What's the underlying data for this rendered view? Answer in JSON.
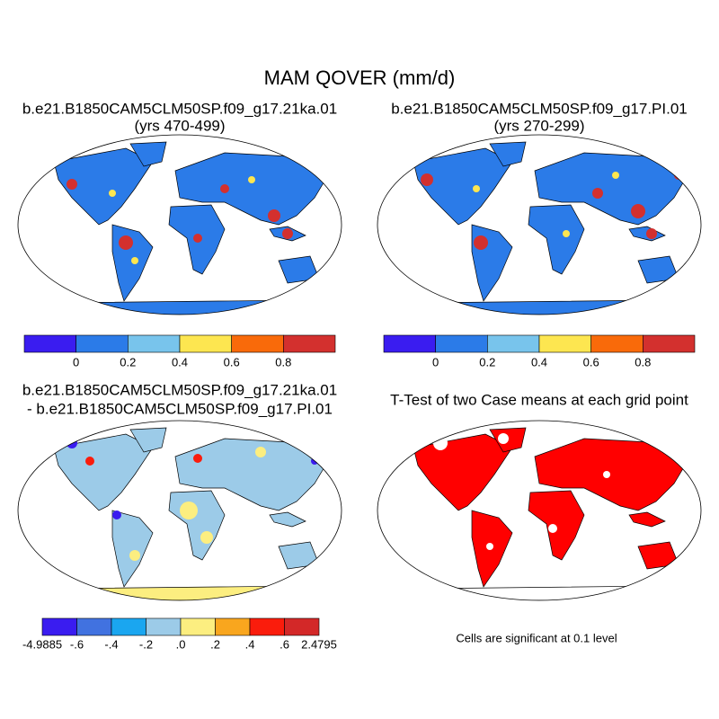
{
  "title": "MAM QOVER (mm/d)",
  "panels": [
    {
      "title": "b.e21.B1850CAM5CLM50SP.f09_g17.21ka.01",
      "subtitle": "(yrs 470-499)",
      "colorbar": {
        "colors": [
          "#3a1cf0",
          "#2b7be8",
          "#78c4ec",
          "#fde650",
          "#f96a0a",
          "#d3302e"
        ],
        "ticks": [
          0,
          0.2,
          0.4,
          0.6,
          0.8
        ]
      }
    },
    {
      "title": "b.e21.B1850CAM5CLM50SP.f09_g17.PI.01",
      "subtitle": "(yrs 270-299)",
      "colorbar": {
        "colors": [
          "#3a1cf0",
          "#2b7be8",
          "#78c4ec",
          "#fde650",
          "#f96a0a",
          "#d3302e"
        ],
        "ticks": [
          0,
          0.2,
          0.4,
          0.6,
          0.8
        ]
      }
    },
    {
      "title": "b.e21.B1850CAM5CLM50SP.f09_g17.21ka.01",
      "subtitle": "- b.e21.B1850CAM5CLM50SP.f09_g17.PI.01",
      "colorbar": {
        "colors": [
          "#3a1cf0",
          "#4172e0",
          "#1aa6f0",
          "#9ccbe8",
          "#fcee80",
          "#f9a61e",
          "#fa1c0c",
          "#d32828"
        ],
        "ticks": [
          {
            "value": -4.9885,
            "label": "-4.9885"
          },
          {
            "value": -0.6,
            "label": "-.6"
          },
          {
            "value": -0.4,
            "label": "-.4"
          },
          {
            "value": -0.2,
            "label": "-.2"
          },
          {
            "value": 0,
            "label": ".0"
          },
          {
            "value": 0.2,
            "label": ".2"
          },
          {
            "value": 0.4,
            "label": ".4"
          },
          {
            "value": 0.6,
            "label": ".6"
          },
          {
            "value": 2.4795,
            "label": "2.4795"
          }
        ]
      }
    },
    {
      "title": "T-Test of two Case means at each grid point",
      "note": "Cells are significant at 0.1 level"
    }
  ]
}
